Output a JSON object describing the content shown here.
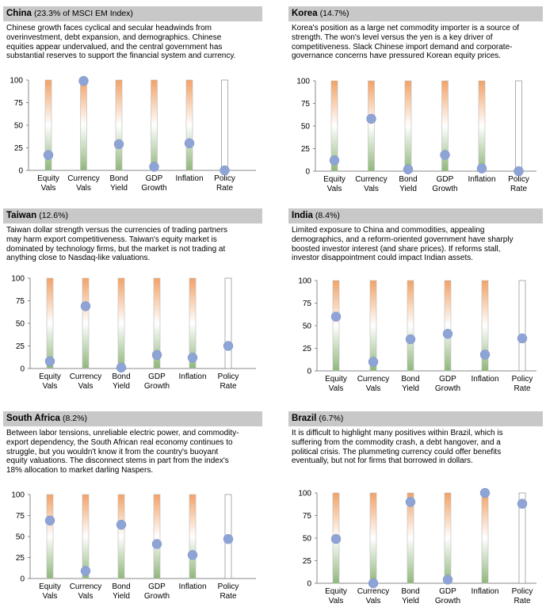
{
  "panels": [
    {
      "name": "China",
      "pct": "(23.3% of MSCI EM Index)",
      "lines": [
        "Chinese growth faces cyclical and secular headwinds from",
        "overinvestment, debt expansion, and demographics. Chinese",
        "equities appear undervalued, and the central government has",
        "substantial reserves to support the financial system and currency."
      ]
    },
    {
      "name": "Korea",
      "pct": "(14.7%)",
      "lines": [
        "Korea's position as a large net commodity importer is a source of",
        "strength. The won's level versus the yen is a key driver of",
        "competitiveness. Slack Chinese import demand and corporate-",
        "governance concerns have pressured Korean equity prices."
      ]
    },
    {
      "name": "Taiwan",
      "pct": "(12.6%)",
      "lines": [
        "Taiwan dollar strength versus the currencies of trading partners",
        "may harm export competitiveness. Taiwan's equity market is",
        "dominated by technology firms, but the market is not trading at",
        "anything close to Nasdaq-like valuations."
      ]
    },
    {
      "name": "India",
      "pct": "(8.4%)",
      "lines": [
        "Limited exposure to China and commodities, appealing",
        "demographics, and a reform-oriented government have sharply",
        "boosted investor interest (and share prices). If reforms stall,",
        "investor disappointment could impact Indian  assets."
      ]
    },
    {
      "name": "South Africa",
      "pct": "(8.2%)",
      "lines": [
        "Between labor tensions, unreliable electric power, and commodity-",
        "export dependency, the South African real economy continues to",
        "struggle, but you wouldn't know it from the country's buoyant",
        "equity valuations. The disconnect stems in part from the index's",
        "18% allocation to market darling Naspers."
      ]
    },
    {
      "name": "Brazil",
      "pct": "(6.7%)",
      "lines": [
        "It is difficult to highlight many positives within Brazil, which is",
        "suffering from the commodity  crash, a debt hangover, and a",
        "political crisis. The plummeting  currency could offer benefits",
        "eventually, but not for firms that borrowed in dollars."
      ]
    }
  ],
  "chart_data": [
    {
      "type": "scatter",
      "categories": [
        "Equity Vals",
        "Currency Vals",
        "Bond Yield",
        "GDP Growth",
        "Inflation",
        "Policy Rate"
      ],
      "values": [
        17,
        99,
        29,
        4,
        30,
        0
      ],
      "ylim": [
        0,
        100
      ],
      "yticks": [
        0,
        25,
        50,
        75,
        100
      ]
    },
    {
      "type": "scatter",
      "categories": [
        "Equity Vals",
        "Currency Vals",
        "Bond Yield",
        "GDP Growth",
        "Inflation",
        "Policy Rate"
      ],
      "values": [
        12,
        58,
        2,
        18,
        3,
        0
      ],
      "ylim": [
        0,
        100
      ],
      "yticks": [
        0,
        25,
        50,
        75,
        100
      ]
    },
    {
      "type": "scatter",
      "categories": [
        "Equity Vals",
        "Currency Vals",
        "Bond Yield",
        "GDP Growth",
        "Inflation",
        "Policy Rate"
      ],
      "values": [
        8,
        69,
        1,
        15,
        12,
        25
      ],
      "ylim": [
        0,
        100
      ],
      "yticks": [
        0,
        25,
        50,
        75,
        100
      ]
    },
    {
      "type": "scatter",
      "categories": [
        "Equity Vals",
        "Currency Vals",
        "Bond Yield",
        "GDP Growth",
        "Inflation",
        "Policy Rate"
      ],
      "values": [
        60,
        10,
        35,
        41,
        18,
        36
      ],
      "ylim": [
        0,
        100
      ],
      "yticks": [
        0,
        25,
        50,
        75,
        100
      ]
    },
    {
      "type": "scatter",
      "categories": [
        "Equity Vals",
        "Currency Vals",
        "Bond Yield",
        "GDP Growth",
        "Inflation",
        "Policy Rate"
      ],
      "values": [
        69,
        9,
        64,
        41,
        28,
        47
      ],
      "ylim": [
        0,
        100
      ],
      "yticks": [
        0,
        25,
        50,
        75,
        100
      ]
    },
    {
      "type": "scatter",
      "categories": [
        "Equity Vals",
        "Currency Vals",
        "Bond Yield",
        "GDP Growth",
        "Inflation",
        "Policy Rate"
      ],
      "values": [
        49,
        0,
        90,
        4,
        100,
        88
      ],
      "ylim": [
        0,
        100
      ],
      "yticks": [
        0,
        25,
        50,
        75,
        100
      ]
    }
  ],
  "colors": {
    "header_bg": "#c8c8c8",
    "marker": "#8ea4d6",
    "bar_top": "#f2a266",
    "bar_bottom": "#8fb77a",
    "policy_bar": "#ffffff"
  }
}
